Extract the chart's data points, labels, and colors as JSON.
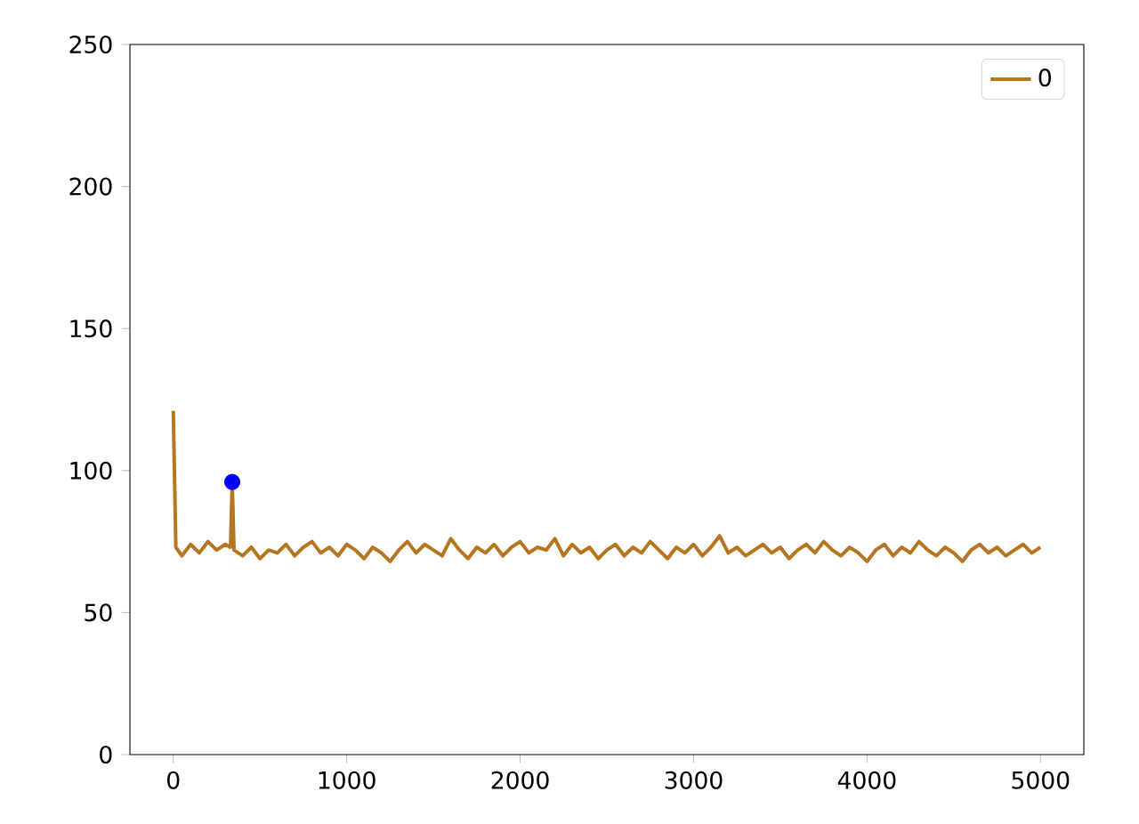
{
  "chart_data": {
    "type": "line",
    "xlim": [
      -250,
      5250
    ],
    "ylim": [
      0,
      250
    ],
    "xticks": [
      0,
      1000,
      2000,
      3000,
      4000,
      5000
    ],
    "yticks": [
      0,
      50,
      100,
      150,
      200,
      250
    ],
    "legend": "top right",
    "grid": false,
    "series": [
      {
        "name": "0",
        "color": "#b5761f",
        "marker": "none",
        "line_style": "solid",
        "x": [
          0,
          15,
          50,
          100,
          150,
          200,
          250,
          300,
          330,
          340,
          350,
          400,
          450,
          500,
          550,
          600,
          650,
          700,
          750,
          800,
          850,
          900,
          950,
          1000,
          1050,
          1100,
          1150,
          1200,
          1250,
          1300,
          1350,
          1400,
          1450,
          1500,
          1550,
          1600,
          1650,
          1700,
          1750,
          1800,
          1850,
          1900,
          1950,
          2000,
          2050,
          2100,
          2150,
          2200,
          2250,
          2300,
          2350,
          2400,
          2450,
          2500,
          2550,
          2600,
          2650,
          2700,
          2750,
          2800,
          2850,
          2900,
          2950,
          3000,
          3050,
          3100,
          3150,
          3200,
          3250,
          3300,
          3350,
          3400,
          3450,
          3500,
          3550,
          3600,
          3650,
          3700,
          3750,
          3800,
          3850,
          3900,
          3950,
          4000,
          4050,
          4100,
          4150,
          4200,
          4250,
          4300,
          4350,
          4400,
          4450,
          4500,
          4550,
          4600,
          4650,
          4700,
          4750,
          4800,
          4850,
          4900,
          4950,
          5000
        ],
        "values": [
          121,
          73,
          70,
          74,
          71,
          75,
          72,
          74,
          73,
          96,
          72,
          70,
          73,
          69,
          72,
          71,
          74,
          70,
          73,
          75,
          71,
          73,
          70,
          74,
          72,
          69,
          73,
          71,
          68,
          72,
          75,
          71,
          74,
          72,
          70,
          76,
          72,
          69,
          73,
          71,
          74,
          70,
          73,
          75,
          71,
          73,
          72,
          76,
          70,
          74,
          71,
          73,
          69,
          72,
          74,
          70,
          73,
          71,
          75,
          72,
          69,
          73,
          71,
          74,
          70,
          73,
          77,
          71,
          73,
          70,
          72,
          74,
          71,
          73,
          69,
          72,
          74,
          71,
          75,
          72,
          70,
          73,
          71,
          68,
          72,
          74,
          70,
          73,
          71,
          75,
          72,
          70,
          73,
          71,
          68,
          72,
          74,
          71,
          73,
          70,
          72,
          74,
          71,
          73
        ]
      },
      {
        "type": "scatter",
        "color": "#0000ff",
        "marker": "circle",
        "x": [
          340
        ],
        "values": [
          96
        ]
      }
    ]
  }
}
